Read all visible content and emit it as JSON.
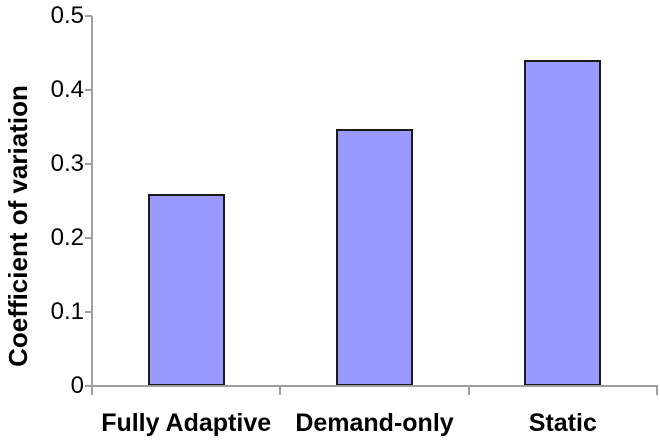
{
  "chart_data": {
    "type": "bar",
    "title": "",
    "xlabel": "",
    "ylabel": "Coefficient of variation",
    "categories": [
      "Fully Adaptive",
      "Demand-only",
      "Static"
    ],
    "values": [
      0.26,
      0.347,
      0.44
    ],
    "ylim": [
      0,
      0.5
    ],
    "yticks": [
      0,
      0.1,
      0.2,
      0.3,
      0.4,
      0.5
    ],
    "ytick_labels": [
      "0",
      "0.1",
      "0.2",
      "0.3",
      "0.4",
      "0.5"
    ],
    "grid": false,
    "legend": false,
    "bar_fill_color": "#9999ff",
    "bar_border_color": "#1a1a1a",
    "axis_color": "#a0a0a0",
    "label_color": "#000000"
  }
}
